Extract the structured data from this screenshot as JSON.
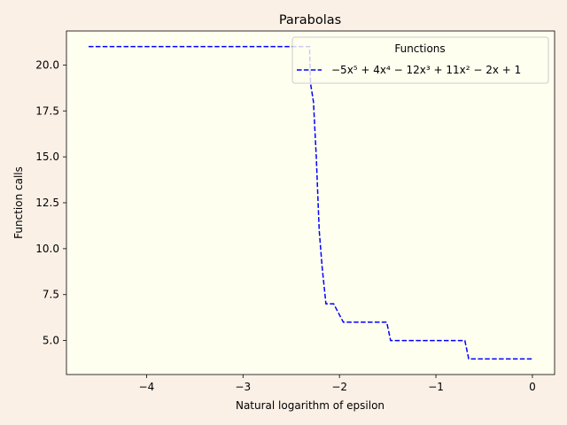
{
  "chart_data": {
    "type": "line",
    "title": "Parabolas",
    "xlabel": "Natural logarithm of epsilon",
    "ylabel": "Function calls",
    "xlim": [
      -4.83,
      0.23
    ],
    "ylim": [
      3.15,
      21.85
    ],
    "xticks": [
      -4,
      -3,
      -2,
      -1,
      0
    ],
    "xtick_labels": [
      "−4",
      "−3",
      "−2",
      "−1",
      "0"
    ],
    "yticks": [
      5.0,
      7.5,
      10.0,
      12.5,
      15.0,
      17.5,
      20.0
    ],
    "ytick_labels": [
      "5.0",
      "7.5",
      "10.0",
      "12.5",
      "15.0",
      "17.5",
      "20.0"
    ],
    "grid": false,
    "legend": {
      "title": "Functions",
      "placement": "upper right"
    },
    "colors": {
      "figure_bg": "#faf0e6",
      "axes_bg": "#fffff0",
      "series": "#0000ff"
    },
    "series": [
      {
        "name": "−5x⁵ + 4x⁴ − 12x³ + 11x² − 2x + 1",
        "style": "dashed",
        "x": [
          -4.6,
          -2.31,
          -2.3,
          -2.27,
          -2.24,
          -2.21,
          -2.18,
          -2.14,
          -2.06,
          -1.96,
          -1.51,
          -1.47,
          -0.7,
          -0.66,
          0.0
        ],
        "y": [
          21,
          21,
          19,
          18,
          15,
          11,
          9,
          7,
          7,
          6,
          6,
          5,
          5,
          4,
          4
        ]
      }
    ]
  }
}
